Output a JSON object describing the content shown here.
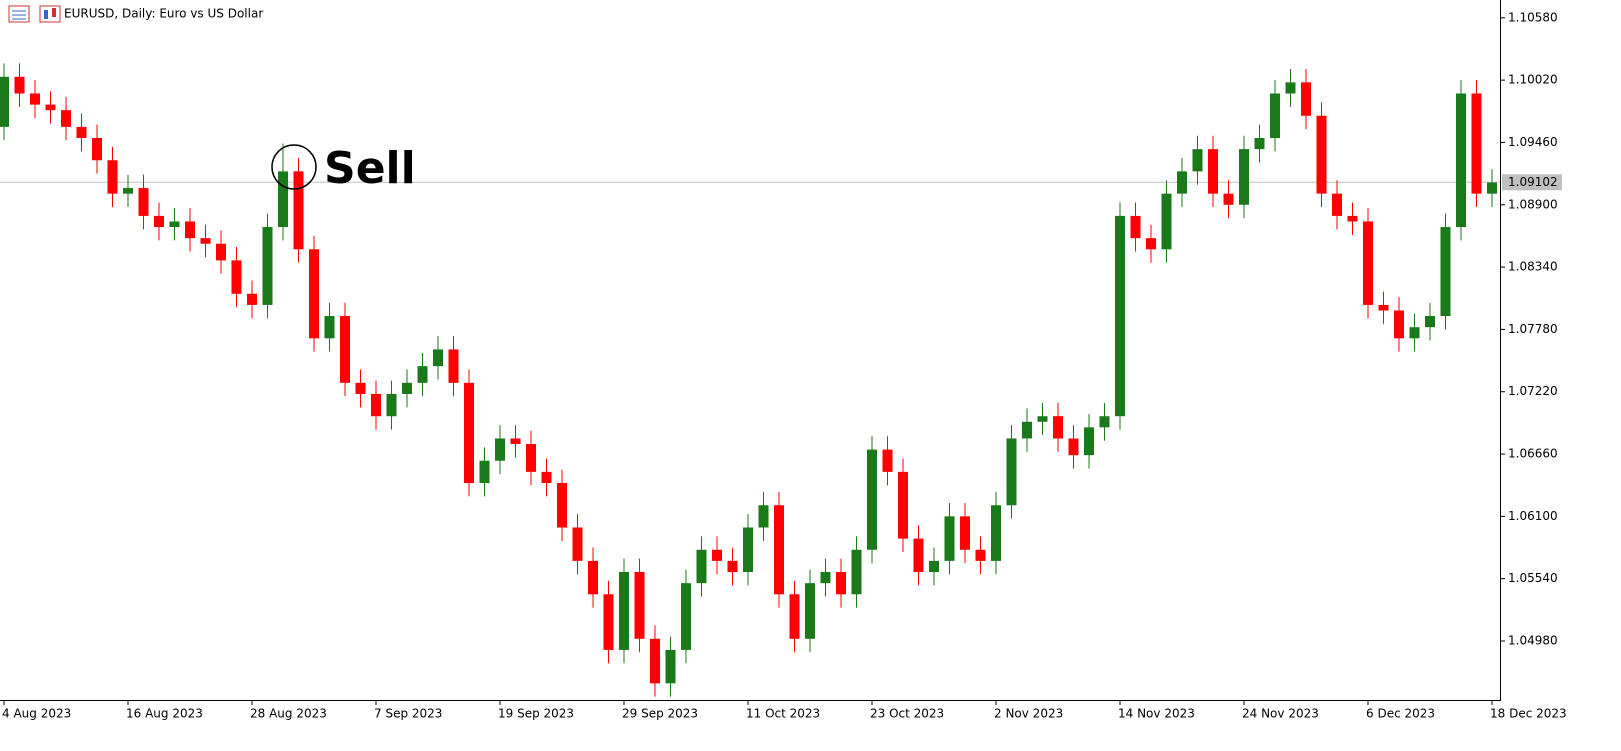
{
  "chart_data": {
    "type": "candlestick",
    "title": "EURUSD, Daily:  Euro vs US Dollar",
    "annotation": "Sell",
    "up_color": "#1a7a1a",
    "down_color": "#ff0000",
    "ylim": [
      1.0445,
      1.1074
    ],
    "yticks": [
      {
        "value": 1.1058,
        "label": "1.10580"
      },
      {
        "value": 1.1002,
        "label": "1.10020"
      },
      {
        "value": 1.0946,
        "label": "1.09460"
      },
      {
        "value": 1.089,
        "label": "1.08900"
      },
      {
        "value": 1.0834,
        "label": "1.08340"
      },
      {
        "value": 1.0778,
        "label": "1.07780"
      },
      {
        "value": 1.0722,
        "label": "1.07220"
      },
      {
        "value": 1.0666,
        "label": "1.06660"
      },
      {
        "value": 1.061,
        "label": "1.06100"
      },
      {
        "value": 1.0554,
        "label": "1.05540"
      },
      {
        "value": 1.0498,
        "label": "1.04980"
      }
    ],
    "current_price": {
      "value": 1.09102,
      "label": "1.09102"
    },
    "categories": [
      "4 Aug 2023",
      null,
      null,
      null,
      null,
      null,
      null,
      null,
      "16 Aug 2023",
      null,
      null,
      null,
      null,
      null,
      null,
      null,
      "28 Aug 2023",
      null,
      null,
      null,
      null,
      null,
      null,
      null,
      "7 Sep 2023",
      null,
      null,
      null,
      null,
      null,
      null,
      null,
      "19 Sep 2023",
      null,
      null,
      null,
      null,
      null,
      null,
      null,
      "29 Sep 2023",
      null,
      null,
      null,
      null,
      null,
      null,
      null,
      "11 Oct 2023",
      null,
      null,
      null,
      null,
      null,
      null,
      null,
      "23 Oct 2023",
      null,
      null,
      null,
      null,
      null,
      null,
      null,
      "2 Nov 2023",
      null,
      null,
      null,
      null,
      null,
      null,
      null,
      "14 Nov 2023",
      null,
      null,
      null,
      null,
      null,
      null,
      null,
      "24 Nov 2023",
      null,
      null,
      null,
      null,
      null,
      null,
      null,
      "6 Dec 2023",
      null,
      null,
      null,
      null,
      null,
      null,
      null,
      "18 Dec 2023"
    ],
    "open": [
      1.096,
      1.1005,
      1.099,
      1.098,
      1.0975,
      1.096,
      1.095,
      1.093,
      1.09,
      1.0905,
      1.088,
      1.087,
      1.0875,
      1.086,
      1.0855,
      1.084,
      1.081,
      1.08,
      1.087,
      1.092,
      1.085,
      1.077,
      1.079,
      1.073,
      1.072,
      1.07,
      1.072,
      1.073,
      1.0745,
      1.076,
      1.073,
      1.064,
      1.066,
      1.068,
      1.0675,
      1.065,
      1.064,
      1.06,
      1.057,
      1.054,
      1.049,
      1.056,
      1.05,
      1.046,
      1.049,
      1.055,
      1.058,
      1.057,
      1.056,
      1.06,
      1.062,
      1.054,
      1.05,
      1.055,
      1.056,
      1.054,
      1.058,
      1.067,
      1.065,
      1.059,
      1.056,
      1.057,
      1.061,
      1.058,
      1.057,
      1.062,
      1.068,
      1.0695,
      1.07,
      1.068,
      1.0665,
      1.069,
      1.07,
      1.088,
      1.086,
      1.085,
      1.09,
      1.092,
      1.094,
      1.09,
      1.089,
      1.094,
      1.095,
      1.099,
      1.1,
      1.097,
      1.09,
      1.088,
      1.0875,
      1.08,
      1.0795,
      1.077,
      1.078,
      1.079,
      1.087,
      1.099,
      1.09
    ],
    "high": [
      1.1017,
      1.1017,
      1.1002,
      1.0992,
      1.0987,
      1.0972,
      1.0962,
      1.0942,
      1.0917,
      1.0917,
      1.0892,
      1.0887,
      1.0887,
      1.0872,
      1.0867,
      1.0852,
      1.0822,
      1.0882,
      1.0945,
      1.0932,
      1.0862,
      1.0802,
      1.0802,
      1.0742,
      1.0732,
      1.0732,
      1.0742,
      1.0757,
      1.0772,
      1.0772,
      1.0742,
      1.0672,
      1.0692,
      1.0692,
      1.0687,
      1.0662,
      1.0652,
      1.0612,
      1.0582,
      1.0552,
      1.0572,
      1.0572,
      1.0512,
      1.0502,
      1.0562,
      1.0592,
      1.0592,
      1.0582,
      1.0612,
      1.0632,
      1.0632,
      1.0552,
      1.0562,
      1.0572,
      1.0572,
      1.0592,
      1.0682,
      1.0682,
      1.0662,
      1.0602,
      1.0582,
      1.0622,
      1.0622,
      1.0592,
      1.0632,
      1.0692,
      1.0707,
      1.0712,
      1.0712,
      1.0692,
      1.0702,
      1.0712,
      1.0892,
      1.0892,
      1.0872,
      1.0912,
      1.0932,
      1.0952,
      1.0952,
      1.0912,
      1.0952,
      1.0962,
      1.1002,
      1.1012,
      1.1012,
      1.0982,
      1.0912,
      1.0892,
      1.0887,
      1.0812,
      1.0807,
      1.0792,
      1.0802,
      1.0882,
      1.1002,
      1.1002,
      1.0922
    ],
    "low": [
      1.0948,
      1.0978,
      1.0968,
      1.0963,
      1.0948,
      1.0938,
      1.0918,
      1.0888,
      1.0888,
      1.0868,
      1.0858,
      1.0858,
      1.0848,
      1.0843,
      1.0828,
      1.0798,
      1.0788,
      1.0788,
      1.0858,
      1.0838,
      1.0758,
      1.0758,
      1.0718,
      1.0708,
      1.0688,
      1.0688,
      1.0708,
      1.0718,
      1.0733,
      1.0718,
      1.0628,
      1.0628,
      1.0648,
      1.0663,
      1.0638,
      1.0628,
      1.0588,
      1.0558,
      1.0528,
      1.0478,
      1.0478,
      1.0488,
      1.0448,
      1.0448,
      1.0478,
      1.0538,
      1.0558,
      1.0548,
      1.0548,
      1.0588,
      1.0528,
      1.0488,
      1.0488,
      1.0538,
      1.0528,
      1.0528,
      1.0568,
      1.0638,
      1.0578,
      1.0548,
      1.0548,
      1.0558,
      1.0568,
      1.0558,
      1.0558,
      1.0608,
      1.0668,
      1.0683,
      1.0668,
      1.0653,
      1.0653,
      1.0678,
      1.0688,
      1.0848,
      1.0838,
      1.0838,
      1.0888,
      1.0908,
      1.0888,
      1.0878,
      1.0878,
      1.0928,
      1.0938,
      1.0978,
      1.0958,
      1.0888,
      1.0868,
      1.0863,
      1.0788,
      1.0783,
      1.0758,
      1.0758,
      1.0768,
      1.0778,
      1.0858,
      1.0888,
      1.0888
    ],
    "close": [
      1.1005,
      1.099,
      1.098,
      1.0975,
      1.096,
      1.095,
      1.093,
      1.09,
      1.0905,
      1.088,
      1.087,
      1.0875,
      1.086,
      1.0855,
      1.084,
      1.081,
      1.08,
      1.087,
      1.092,
      1.085,
      1.077,
      1.079,
      1.073,
      1.072,
      1.07,
      1.072,
      1.073,
      1.0745,
      1.076,
      1.073,
      1.064,
      1.066,
      1.068,
      1.0675,
      1.065,
      1.064,
      1.06,
      1.057,
      1.054,
      1.049,
      1.056,
      1.05,
      1.046,
      1.049,
      1.055,
      1.058,
      1.057,
      1.056,
      1.06,
      1.062,
      1.054,
      1.05,
      1.055,
      1.056,
      1.054,
      1.058,
      1.067,
      1.065,
      1.059,
      1.056,
      1.057,
      1.061,
      1.058,
      1.057,
      1.062,
      1.068,
      1.0695,
      1.07,
      1.068,
      1.0665,
      1.069,
      1.07,
      1.088,
      1.086,
      1.085,
      1.09,
      1.092,
      1.094,
      1.09,
      1.089,
      1.094,
      1.095,
      1.099,
      1.1,
      1.097,
      1.09,
      1.088,
      1.0875,
      1.08,
      1.0795,
      1.077,
      1.078,
      1.079,
      1.087,
      1.099,
      1.09,
      1.091
    ]
  }
}
